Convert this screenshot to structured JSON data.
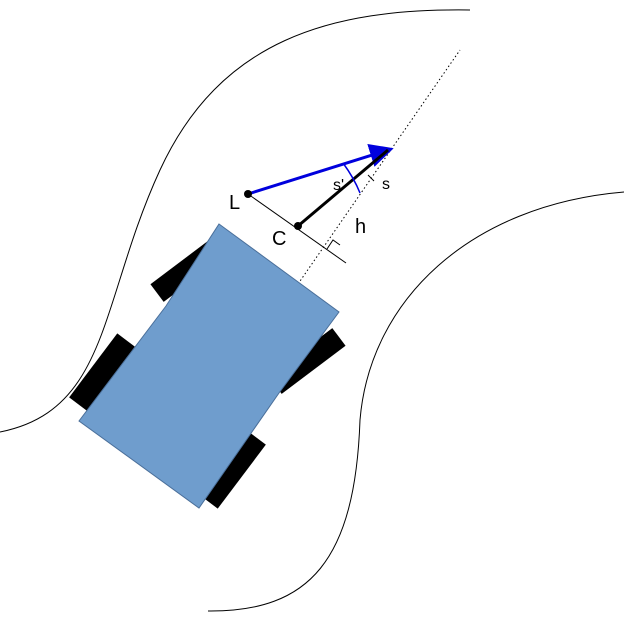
{
  "labels": {
    "L": "L",
    "C": "C",
    "h": "h",
    "s_prime": "s'",
    "s": "s"
  },
  "colors": {
    "vehicle_body": "#6f9dcd",
    "vehicle_outline": "#4a6f9a",
    "wheel": "#000000",
    "lookahead_vector": "#0000dd",
    "heading_vector": "#000000",
    "road_edge": "#000000"
  }
}
